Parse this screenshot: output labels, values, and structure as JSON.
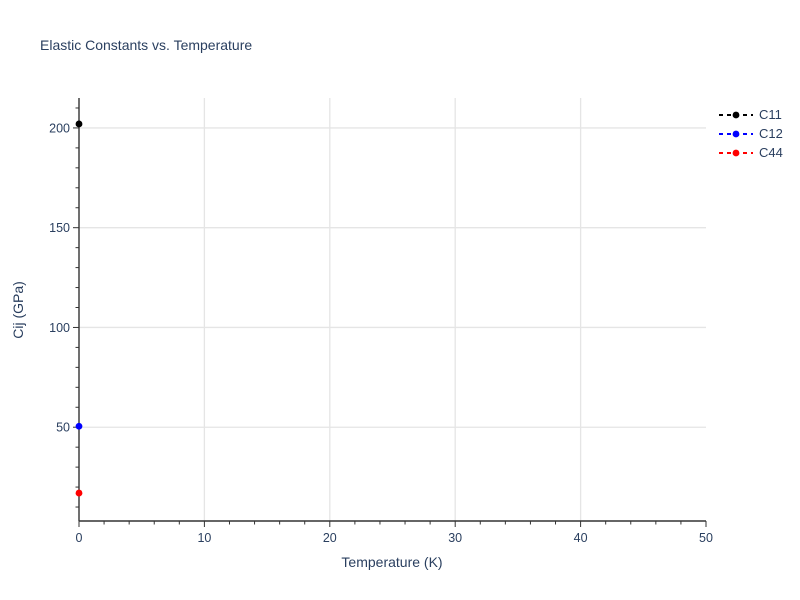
{
  "colors": {
    "text": "#2a3f5f",
    "grid": "#e5e5e5",
    "axis_line": "#333333",
    "background": "#ffffff"
  },
  "chart_data": {
    "type": "scatter",
    "title": "Elastic Constants vs. Temperature",
    "xlabel": "Temperature (K)",
    "ylabel": "Cij (GPa)",
    "xlim": [
      0,
      50
    ],
    "ylim": [
      3,
      215
    ],
    "x_ticks": [
      0,
      10,
      20,
      30,
      40,
      50
    ],
    "y_ticks": [
      50,
      100,
      150,
      200
    ],
    "x_minor_step": 2,
    "y_minor_step": 10,
    "grid": true,
    "legend_position": "outside-top-right",
    "series": [
      {
        "name": "C11",
        "color": "#000000",
        "line_dash": "dash",
        "marker": "circle",
        "x": [
          0
        ],
        "y": [
          202
        ]
      },
      {
        "name": "C12",
        "color": "#0000ff",
        "line_dash": "dash",
        "marker": "circle",
        "x": [
          0
        ],
        "y": [
          50.5
        ]
      },
      {
        "name": "C44",
        "color": "#ff0000",
        "line_dash": "dash",
        "marker": "circle",
        "x": [
          0
        ],
        "y": [
          17
        ]
      }
    ]
  }
}
